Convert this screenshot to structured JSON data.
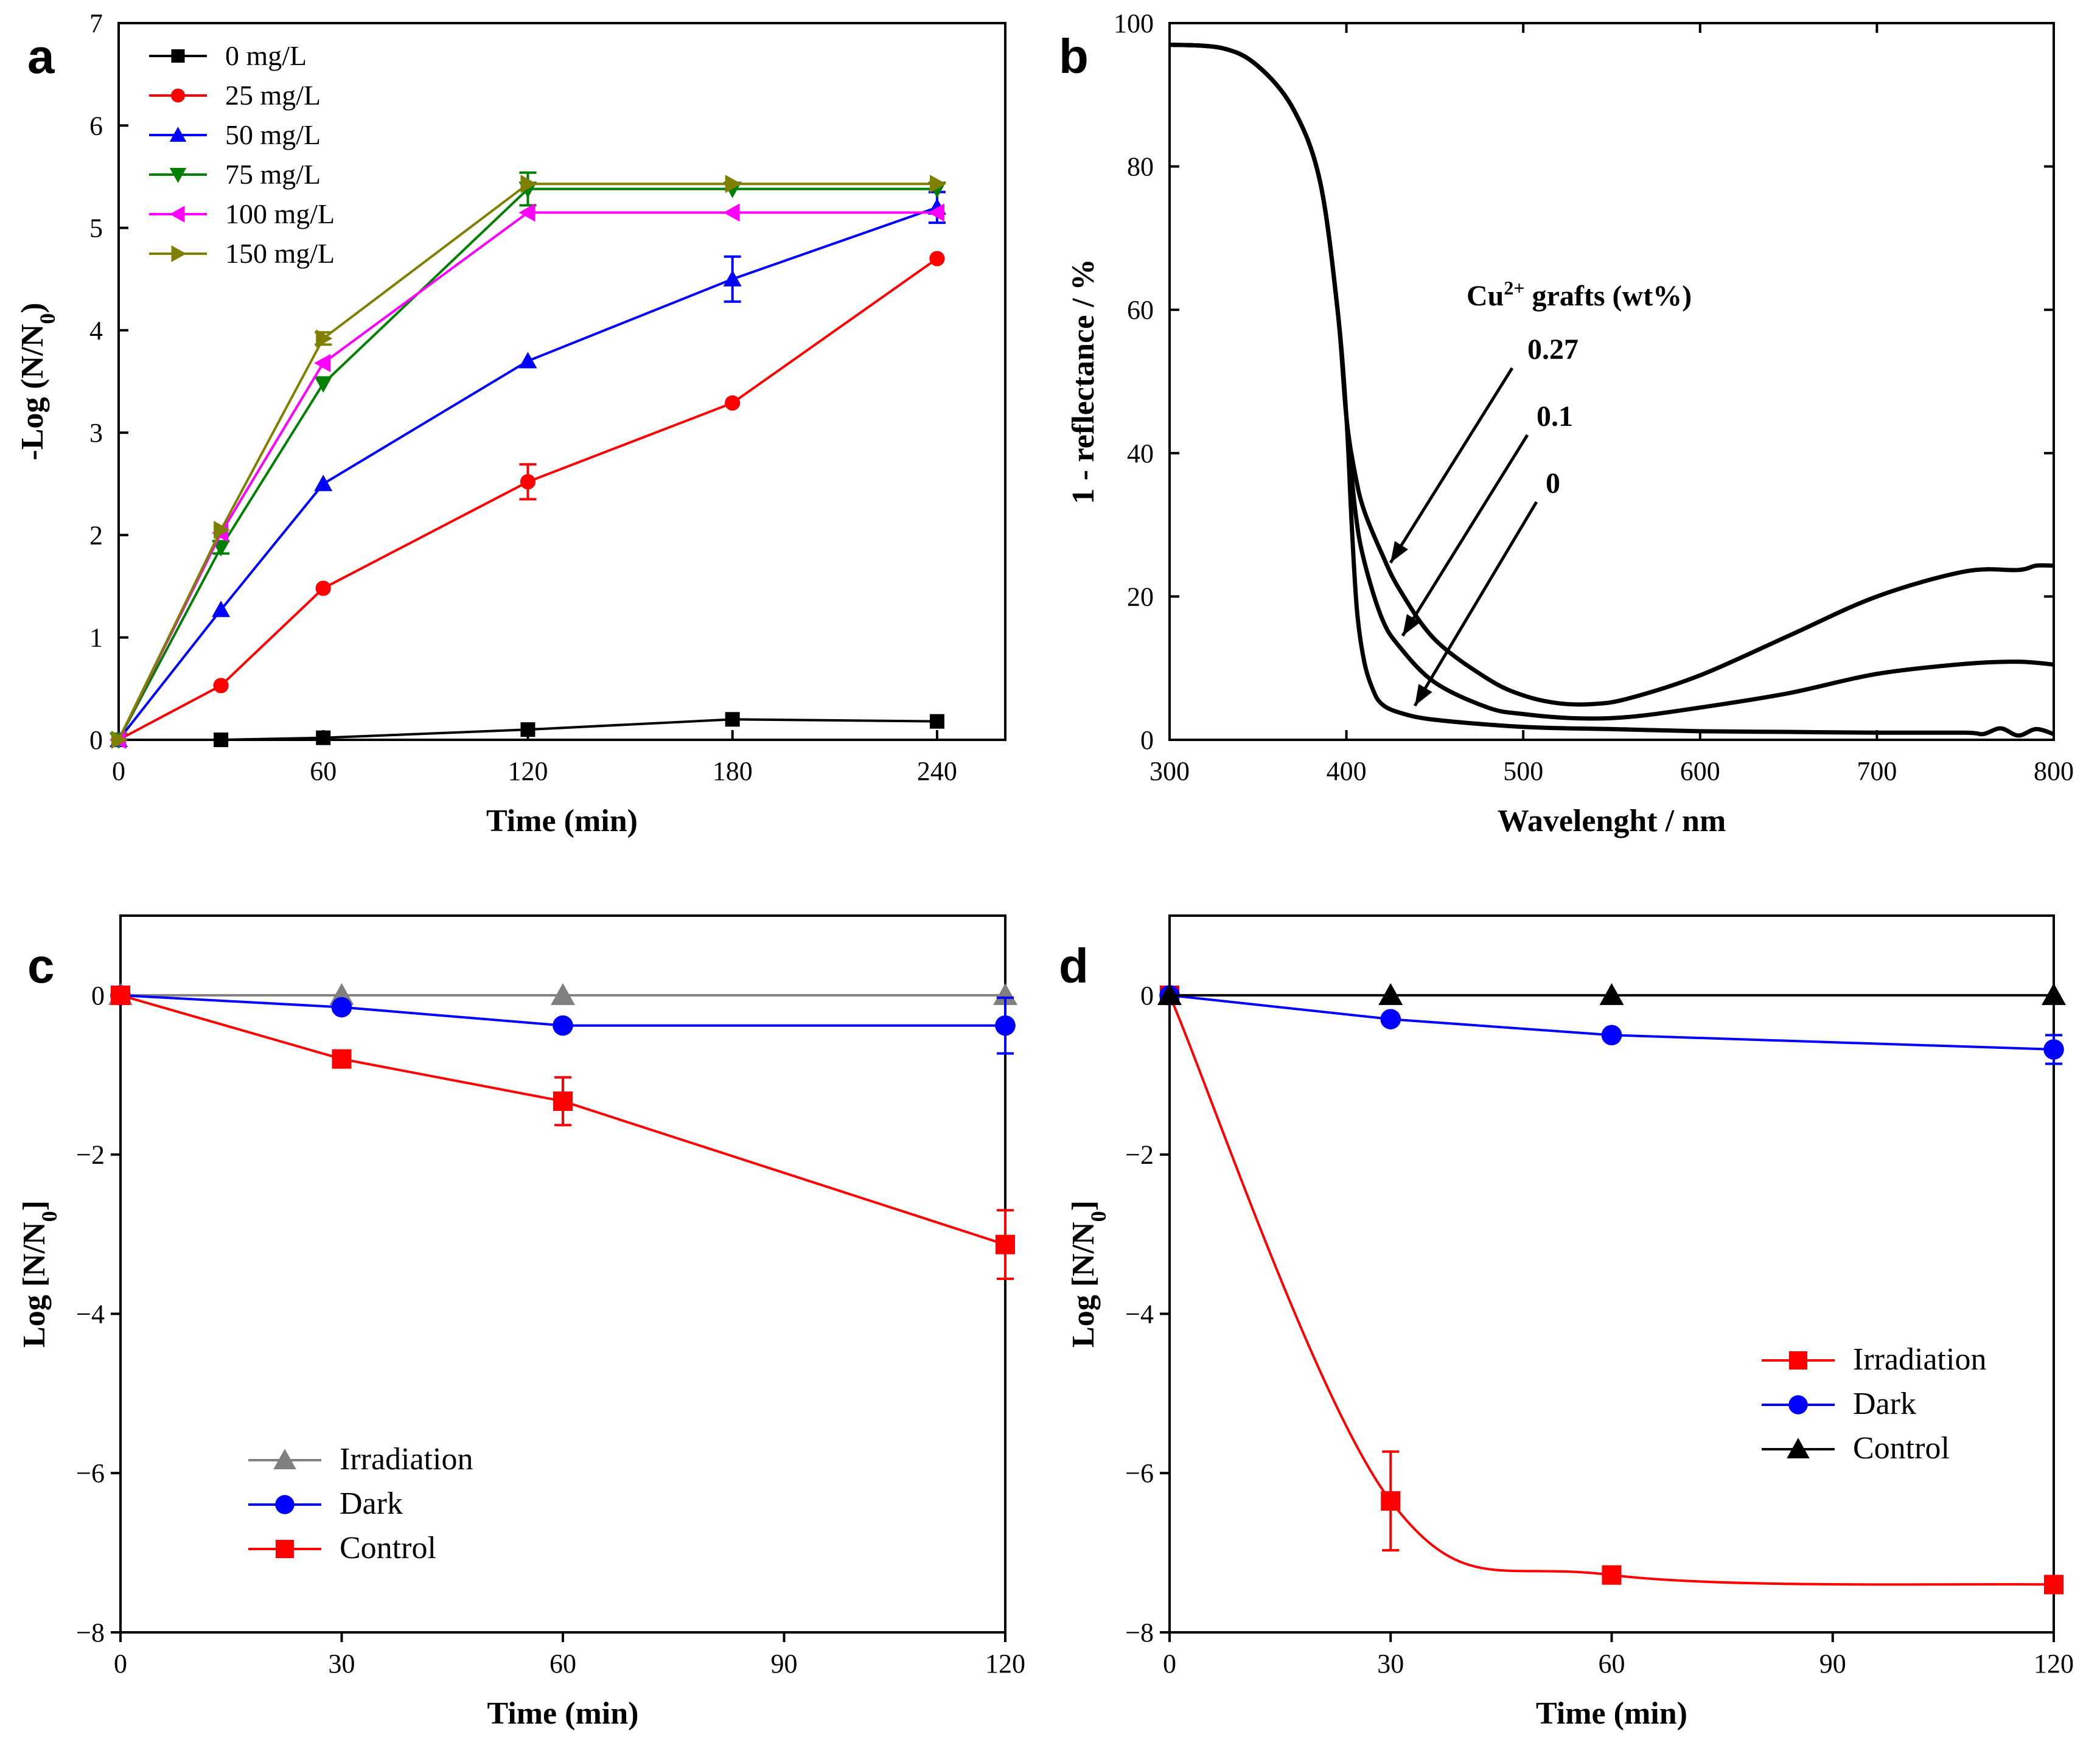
{
  "chart_data": [
    {
      "panel": "a",
      "type": "line",
      "xlabel": "Time (min)",
      "ylabel": "-Log (N/N",
      "ylabel_sub": "0",
      "ylabel_end": ")",
      "xlim": [
        0,
        260
      ],
      "ylim": [
        0,
        7
      ],
      "xticks": [
        "0",
        "60",
        "120",
        "180",
        "240"
      ],
      "yticks": [
        "0",
        "1",
        "2",
        "3",
        "4",
        "5",
        "6",
        "7"
      ],
      "x": [
        0,
        30,
        60,
        120,
        180,
        240
      ],
      "series": [
        {
          "name": "0 mg/L",
          "color": "#000000",
          "marker": "square",
          "values": [
            0,
            0,
            0.02,
            0.1,
            0.2,
            0.18
          ],
          "errors": [
            0,
            0,
            0,
            0,
            0,
            0
          ]
        },
        {
          "name": "25 mg/L",
          "color": "#ff0000",
          "marker": "circle",
          "values": [
            0,
            0.53,
            1.48,
            2.52,
            3.29,
            4.7
          ],
          "errors": [
            0,
            0,
            0,
            0.17,
            0,
            0
          ]
        },
        {
          "name": "50 mg/L",
          "color": "#0000ff",
          "marker": "triangle-up",
          "values": [
            0,
            1.27,
            2.5,
            3.7,
            4.5,
            5.2
          ],
          "errors": [
            0,
            0,
            0,
            0,
            0.22,
            0.15
          ]
        },
        {
          "name": "75 mg/L",
          "color": "#008000",
          "marker": "triangle-down",
          "values": [
            0,
            1.88,
            3.48,
            5.38,
            5.38,
            5.38
          ],
          "errors": [
            0,
            0.06,
            0,
            0.16,
            0,
            0
          ]
        },
        {
          "name": "100 mg/L",
          "color": "#ff00ff",
          "marker": "triangle-left",
          "values": [
            0,
            2.02,
            3.68,
            5.15,
            5.15,
            5.15
          ],
          "errors": [
            0,
            0,
            0,
            0,
            0,
            0
          ]
        },
        {
          "name": "150 mg/L",
          "color": "#808000",
          "marker": "triangle-right",
          "values": [
            0,
            2.05,
            3.92,
            5.43,
            5.43,
            5.43
          ],
          "errors": [
            0,
            0,
            0.06,
            0,
            0,
            0
          ]
        }
      ]
    },
    {
      "panel": "b",
      "type": "line",
      "xlabel": "Wavelenght / nm",
      "ylabel": "1 -  reflectance / %",
      "xlim": [
        300,
        800
      ],
      "ylim": [
        0,
        100
      ],
      "xticks": [
        "300",
        "400",
        "500",
        "600",
        "700",
        "800"
      ],
      "yticks": [
        "0",
        "20",
        "40",
        "60",
        "80",
        "100"
      ],
      "legend_title": "Cu",
      "legend_title_sup": "2+",
      "legend_title_end": " grafts (wt%)",
      "series": [
        {
          "name": "0",
          "x": [
            300,
            330,
            350,
            370,
            385,
            395,
            400,
            403,
            406,
            410,
            415,
            420,
            430,
            450,
            500,
            550,
            600,
            650,
            700,
            750,
            760,
            770,
            780,
            790,
            800
          ],
          "values": [
            97,
            96.5,
            94,
            88,
            78,
            60,
            45,
            30,
            18,
            11,
            7,
            5,
            3.8,
            2.8,
            1.8,
            1.5,
            1.2,
            1.1,
            1.0,
            1.0,
            0.8,
            1.6,
            0.6,
            1.5,
            0.8
          ]
        },
        {
          "name": "0.1",
          "x": [
            300,
            330,
            350,
            370,
            385,
            395,
            400,
            405,
            410,
            420,
            430,
            450,
            480,
            500,
            530,
            560,
            600,
            650,
            700,
            750,
            780,
            800
          ],
          "values": [
            97,
            96.5,
            94,
            88,
            78,
            60,
            45,
            32,
            25,
            17,
            13,
            8,
            4.5,
            3.6,
            3.0,
            3.2,
            4.5,
            6.5,
            9.2,
            10.6,
            10.9,
            10.5
          ]
        },
        {
          "name": "0.27",
          "x": [
            300,
            330,
            350,
            370,
            385,
            395,
            400,
            405,
            410,
            420,
            430,
            450,
            480,
            500,
            520,
            540,
            560,
            600,
            650,
            700,
            750,
            780,
            790,
            800
          ],
          "values": [
            97,
            96.5,
            94,
            88,
            78,
            60,
            45,
            37,
            32,
            26,
            21,
            14,
            8.5,
            6.2,
            5.1,
            5.0,
            5.8,
            9.0,
            14.5,
            20,
            23.5,
            23.7,
            24.3,
            24.3
          ]
        }
      ]
    },
    {
      "panel": "c",
      "type": "line",
      "xlabel": "Time (min)",
      "ylabel": "Log [N/N",
      "ylabel_sub": "0",
      "ylabel_end": "]",
      "xlim": [
        0,
        120
      ],
      "ylim": [
        -8,
        1
      ],
      "xticks": [
        "0",
        "30",
        "60",
        "90",
        "120"
      ],
      "yticks": [
        "0",
        "−2",
        "−4",
        "−6",
        "−8"
      ],
      "x": [
        0,
        30,
        60,
        120
      ],
      "series": [
        {
          "name": "Irradiation",
          "color": "#808080",
          "marker": "triangle-up",
          "values": [
            0,
            0,
            0,
            0
          ],
          "errors": [
            0,
            0,
            0,
            0
          ]
        },
        {
          "name": "Dark",
          "color": "#0000ff",
          "marker": "circle",
          "values": [
            0,
            -0.15,
            -0.38,
            -0.38
          ],
          "errors": [
            0,
            0,
            0,
            0.35
          ]
        },
        {
          "name": "Control",
          "color": "#ff0000",
          "marker": "square",
          "values": [
            0,
            -0.8,
            -1.33,
            -3.13
          ],
          "errors": [
            0,
            0,
            0.3,
            0.43
          ]
        }
      ]
    },
    {
      "panel": "d",
      "type": "line",
      "xlabel": "Time (min)",
      "ylabel": "Log [N/N",
      "ylabel_sub": "0",
      "ylabel_end": "]",
      "xlim": [
        0,
        120
      ],
      "ylim": [
        -8,
        1
      ],
      "xticks": [
        "0",
        "30",
        "60",
        "90",
        "120"
      ],
      "yticks": [
        "0",
        "−2",
        "−4",
        "−6",
        "−8"
      ],
      "x": [
        0,
        30,
        60,
        120
      ],
      "series": [
        {
          "name": "Irradiation",
          "color": "#ff0000",
          "marker": "square",
          "values": [
            0,
            -6.35,
            -7.28,
            -7.4
          ],
          "errors": [
            0,
            0.62,
            0,
            0
          ]
        },
        {
          "name": "Dark",
          "color": "#0000ff",
          "marker": "circle",
          "values": [
            0,
            -0.3,
            -0.5,
            -0.68
          ],
          "errors": [
            0,
            0,
            0,
            0.18
          ]
        },
        {
          "name": "Control",
          "color": "#000000",
          "marker": "triangle-up",
          "values": [
            0,
            0,
            0,
            0
          ],
          "errors": [
            0,
            0,
            0,
            0
          ]
        }
      ]
    }
  ]
}
